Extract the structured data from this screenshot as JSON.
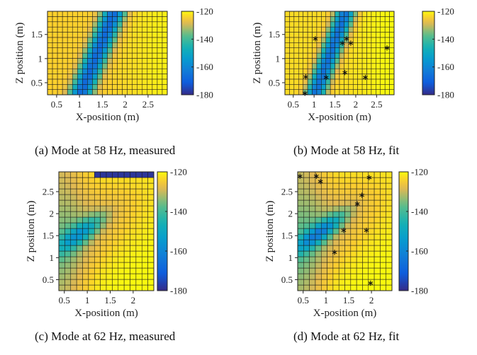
{
  "chart_data": [
    {
      "type": "heatmap",
      "caption": "(a) Mode at 58 Hz, measured",
      "xlabel": "X-position (m)",
      "ylabel": "Z position (m)",
      "xticks": [
        0.5,
        1,
        1.5,
        2,
        2.5
      ],
      "xtick_labels": [
        "0.5",
        "1",
        "1.5",
        "2",
        "2.5"
      ],
      "yticks": [
        0.5,
        1,
        1.5
      ],
      "ytick_labels": [
        "0.5",
        "1",
        "1.5"
      ],
      "xlim": [
        0.3,
        2.92
      ],
      "ylim": [
        0.25,
        1.98
      ],
      "clim": [
        -180,
        -120
      ],
      "colorbar_ticks": [
        -120,
        -140,
        -160,
        -180
      ],
      "colorbar_labels": [
        "-120",
        "-140",
        "-160",
        "-180"
      ],
      "grid": {
        "nx": 24,
        "nz": 16
      },
      "field": {
        "kind": "band",
        "base": -124,
        "dip": -44,
        "band_x_at_zmin": 1.02,
        "band_slope_x_per_z": 0.43,
        "band_width": 0.17,
        "corner_zone": null
      },
      "sensor_marks": []
    },
    {
      "type": "heatmap",
      "caption": "(b) Mode at 58 Hz, fit",
      "xlabel": "X-position (m)",
      "ylabel": "Z position (m)",
      "xticks": [
        0.5,
        1,
        1.5,
        2,
        2.5
      ],
      "xtick_labels": [
        "0.5",
        "1",
        "1.5",
        "2",
        "2.5"
      ],
      "yticks": [
        0.5,
        1,
        1.5
      ],
      "ytick_labels": [
        "0.5",
        "1",
        "1.5"
      ],
      "xlim": [
        0.3,
        2.92
      ],
      "ylim": [
        0.25,
        1.98
      ],
      "clim": [
        -180,
        -120
      ],
      "colorbar_ticks": [
        -120,
        -140,
        -160,
        -180
      ],
      "colorbar_labels": [
        "-120",
        "-140",
        "-160",
        "-180"
      ],
      "grid": {
        "nx": 24,
        "nz": 16
      },
      "field": {
        "kind": "band",
        "base": -123,
        "dip": -43,
        "band_x_at_zmin": 1.02,
        "band_slope_x_per_z": 0.43,
        "band_width": 0.16,
        "corner_zone": null
      },
      "sensor_marks": [
        {
          "x": 0.78,
          "z": 0.28
        },
        {
          "x": 0.8,
          "z": 0.62
        },
        {
          "x": 1.03,
          "z": 1.41
        },
        {
          "x": 1.29,
          "z": 0.61
        },
        {
          "x": 1.68,
          "z": 1.32
        },
        {
          "x": 1.74,
          "z": 0.71
        },
        {
          "x": 1.78,
          "z": 1.41
        },
        {
          "x": 1.88,
          "z": 1.32
        },
        {
          "x": 2.23,
          "z": 0.61
        },
        {
          "x": 2.75,
          "z": 1.22
        }
      ]
    },
    {
      "type": "heatmap",
      "caption": "(c) Mode at 62 Hz, measured",
      "xlabel": "X-position (m)",
      "ylabel": "Z position (m)",
      "xticks": [
        0.5,
        1,
        1.5,
        2
      ],
      "xtick_labels": [
        "0.5",
        "1",
        "1.5",
        "2"
      ],
      "yticks": [
        0.5,
        1,
        1.5,
        2,
        2.5
      ],
      "ytick_labels": [
        "0.5",
        "1",
        "1.5",
        "2",
        "2.5"
      ],
      "xlim": [
        0.38,
        2.45
      ],
      "ylim": [
        0.25,
        2.95
      ],
      "clim": [
        -180,
        -120
      ],
      "colorbar_ticks": [
        -120,
        -140,
        -160,
        -180
      ],
      "colorbar_labels": [
        "-120",
        "-140",
        "-160",
        "-180"
      ],
      "grid": {
        "nx": 16,
        "nz": 21
      },
      "field": {
        "kind": "blob",
        "base": -120,
        "edge_warm": -130,
        "center": [
          0.85,
          1.55
        ],
        "angle_deg": -38,
        "sigma_major": 0.42,
        "sigma_minor": 0.14,
        "depth": -24,
        "halo_depth": -8,
        "corner_zone": {
          "x_from": 1.2,
          "x_to": 2.45,
          "z_from": 2.8,
          "z_to": 2.95,
          "value": -178
        }
      },
      "sensor_marks": []
    },
    {
      "type": "heatmap",
      "caption": "(d) Mode at 62 Hz, fit",
      "xlabel": "X-position (m)",
      "ylabel": "Z position (m)",
      "xticks": [
        0.5,
        1,
        1.5,
        2
      ],
      "xtick_labels": [
        "0.5",
        "1",
        "1.5",
        "2"
      ],
      "yticks": [
        0.5,
        1,
        1.5,
        2,
        2.5
      ],
      "ytick_labels": [
        "0.5",
        "1",
        "1.5",
        "2",
        "2.5"
      ],
      "xlim": [
        0.38,
        2.45
      ],
      "ylim": [
        0.25,
        2.95
      ],
      "clim": [
        -180,
        -120
      ],
      "colorbar_ticks": [
        -120,
        -140,
        -160,
        -180
      ],
      "colorbar_labels": [
        "-120",
        "-140",
        "-160",
        "-180"
      ],
      "grid": {
        "nx": 16,
        "nz": 21
      },
      "field": {
        "kind": "blob",
        "base": -120,
        "edge_warm": -131,
        "center": [
          0.88,
          1.58
        ],
        "angle_deg": -38,
        "sigma_major": 0.45,
        "sigma_minor": 0.13,
        "depth": -30,
        "halo_depth": -9,
        "corner_zone": null
      },
      "sensor_marks": [
        {
          "x": 0.43,
          "z": 2.85
        },
        {
          "x": 0.79,
          "z": 2.85
        },
        {
          "x": 0.88,
          "z": 2.73
        },
        {
          "x": 1.19,
          "z": 1.12
        },
        {
          "x": 1.39,
          "z": 1.62
        },
        {
          "x": 1.69,
          "z": 2.22
        },
        {
          "x": 1.79,
          "z": 2.42
        },
        {
          "x": 1.89,
          "z": 1.62
        },
        {
          "x": 1.95,
          "z": 2.82
        },
        {
          "x": 1.98,
          "z": 0.42
        }
      ]
    }
  ]
}
